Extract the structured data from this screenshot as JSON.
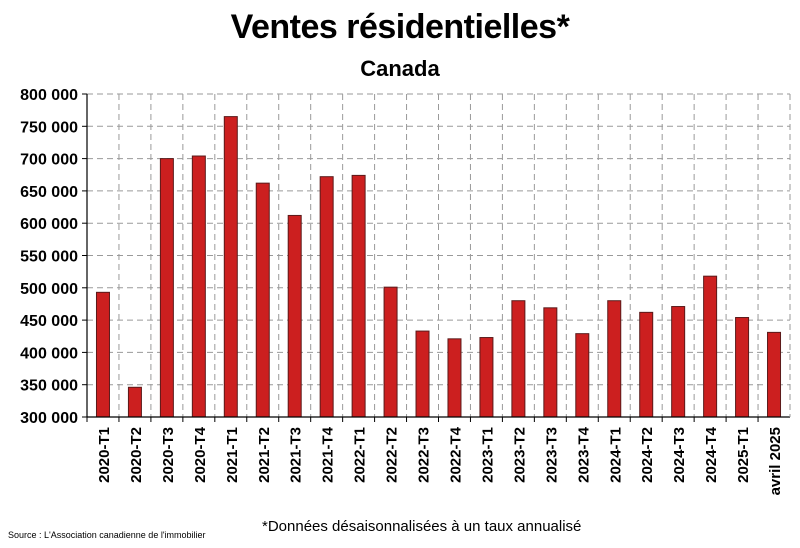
{
  "chart_data": {
    "type": "bar",
    "title": "Ventes résidentielles*",
    "subtitle": "Canada",
    "categories": [
      "2020-T1",
      "2020-T2",
      "2020-T3",
      "2020-T4",
      "2021-T1",
      "2021-T2",
      "2021-T3",
      "2021-T4",
      "2022-T1",
      "2022-T2",
      "2022-T3",
      "2022-T4",
      "2023-T1",
      "2023-T2",
      "2023-T3",
      "2023-T4",
      "2024-T1",
      "2024-T2",
      "2024-T3",
      "2024-T4",
      "2025-T1",
      "avril 2025"
    ],
    "values": [
      493000,
      346000,
      700000,
      704000,
      765000,
      662000,
      612000,
      672000,
      674000,
      501000,
      433000,
      421000,
      423000,
      480000,
      469000,
      429000,
      480000,
      462000,
      471000,
      518000,
      454000,
      431000
    ],
    "ylim": [
      300000,
      800000
    ],
    "yticks": [
      "300 000",
      "350 000",
      "400 000",
      "450 000",
      "500 000",
      "550 000",
      "600 000",
      "650 000",
      "700 000",
      "750 000",
      "800 000"
    ],
    "xlabel": "",
    "ylabel": "",
    "grid": true,
    "bar_color": "#cc1f1f",
    "bar_border": "#5a1a1a",
    "footnote": "*Données désaisonnalisées à un taux annualisé",
    "source": "Source : L'Association canadienne de l'immobilier"
  }
}
